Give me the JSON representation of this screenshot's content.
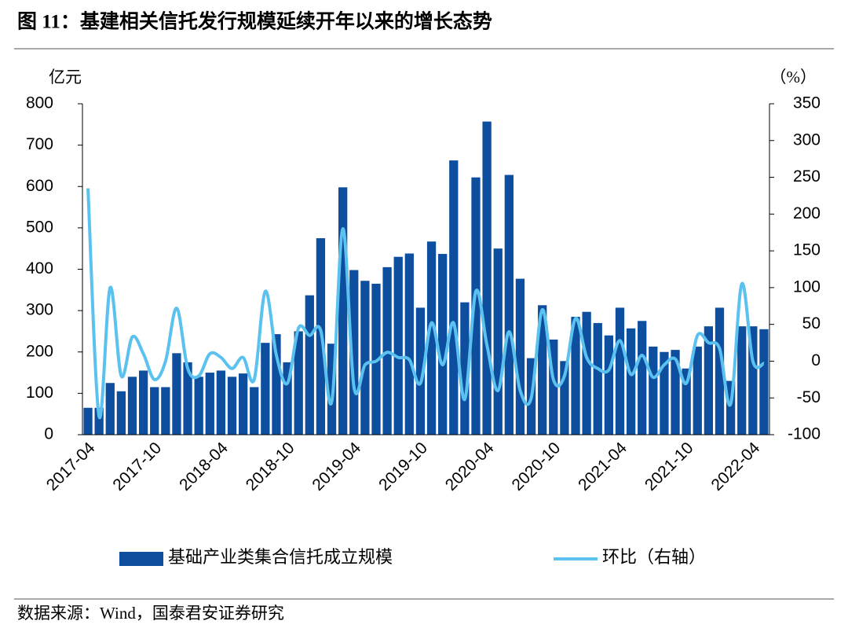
{
  "title": "图 11：基建相关信托发行规模延续开年以来的增长态势",
  "source": "数据来源：Wind，国泰君安证券研究",
  "chart_data": {
    "type": "bar",
    "ylabel": "亿元",
    "y2label": "（%）",
    "categories": [
      "2017-04",
      null,
      null,
      null,
      null,
      null,
      "2017-10",
      null,
      null,
      null,
      null,
      null,
      "2018-04",
      null,
      null,
      null,
      null,
      null,
      "2018-10",
      null,
      null,
      null,
      null,
      null,
      "2019-04",
      null,
      null,
      null,
      null,
      null,
      "2019-10",
      null,
      null,
      null,
      null,
      null,
      "2020-04",
      null,
      null,
      null,
      null,
      null,
      "2020-10",
      null,
      null,
      null,
      null,
      null,
      "2021-04",
      null,
      null,
      null,
      null,
      null,
      "2021-10",
      null,
      null,
      null,
      null,
      null,
      "2022-04",
      null
    ],
    "series": [
      {
        "name": "基础产业类集合信托成立规模",
        "type": "bar",
        "color": "#0d4f9e",
        "values": [
          65,
          65,
          125,
          105,
          140,
          155,
          115,
          115,
          197,
          175,
          140,
          150,
          155,
          140,
          148,
          115,
          222,
          243,
          175,
          250,
          337,
          475,
          220,
          598,
          398,
          372,
          365,
          405,
          430,
          438,
          307,
          467,
          437,
          663,
          320,
          622,
          757,
          450,
          628,
          377,
          185,
          313,
          230,
          178,
          285,
          297,
          270,
          240,
          307,
          257,
          275,
          213,
          200,
          205,
          160,
          213,
          262,
          307,
          130,
          262,
          262,
          255
        ]
      },
      {
        "name": "环比（右轴）",
        "type": "line",
        "axis": "y2",
        "color": "#5bc2f0",
        "values": [
          235,
          -75,
          100,
          -20,
          33,
          10,
          -25,
          0,
          72,
          -10,
          -20,
          10,
          5,
          -10,
          5,
          -25,
          95,
          8,
          -30,
          45,
          35,
          42,
          -55,
          180,
          -35,
          -5,
          0,
          12,
          5,
          2,
          -30,
          52,
          -5,
          52,
          -52,
          95,
          22,
          -40,
          40,
          -40,
          -50,
          70,
          -25,
          -20,
          58,
          5,
          -10,
          -12,
          28,
          -18,
          8,
          -22,
          -5,
          3,
          -30,
          35,
          25,
          17,
          -58,
          105,
          0,
          -3
        ]
      }
    ],
    "ylim": [
      0,
      800
    ],
    "yticks": [
      0,
      100,
      200,
      300,
      400,
      500,
      600,
      700,
      800
    ],
    "y2lim": [
      -100,
      350
    ],
    "y2ticks": [
      -100,
      -50,
      0,
      50,
      100,
      150,
      200,
      250,
      300,
      350
    ],
    "legend": "bottom"
  }
}
